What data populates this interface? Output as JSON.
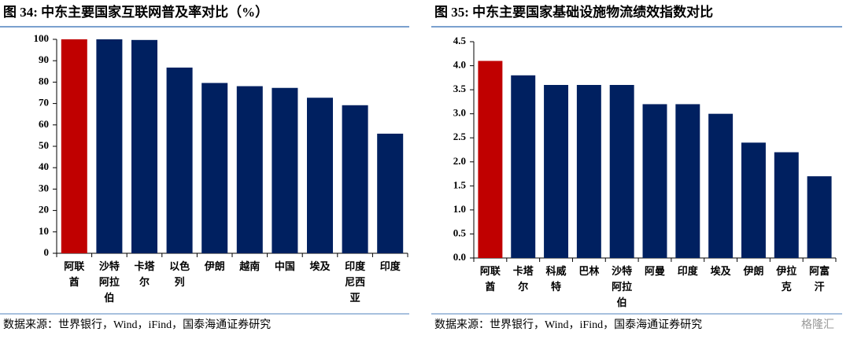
{
  "chart_data": [
    {
      "type": "bar",
      "title": "图 34:  中东主要国家互联网普及率对比（%）",
      "categories": [
        "阿联酋",
        "沙特阿拉伯",
        "卡塔尔",
        "以色列",
        "伊朗",
        "越南",
        "中国",
        "埃及",
        "印度尼西亚",
        "印度"
      ],
      "values": [
        100,
        100,
        99.7,
        86.8,
        79.6,
        78.1,
        77.3,
        72.7,
        69.2,
        55.9
      ],
      "colors": [
        "#c00000",
        "#002060",
        "#002060",
        "#002060",
        "#002060",
        "#002060",
        "#002060",
        "#002060",
        "#002060",
        "#002060"
      ],
      "ylim": [
        0,
        100
      ],
      "yticks": [
        0,
        10,
        20,
        30,
        40,
        50,
        60,
        70,
        80,
        90,
        100
      ],
      "source": "数据来源：世界银行，Wind，iFind，国泰海通证券研究"
    },
    {
      "type": "bar",
      "title": "图 35:  中东主要国家基础设施物流绩效指数对比",
      "categories": [
        "阿联酋",
        "卡塔尔",
        "科威特",
        "巴林",
        "沙特阿拉伯",
        "阿曼",
        "印度",
        "埃及",
        "伊朗",
        "伊拉克",
        "阿富汗"
      ],
      "values": [
        4.1,
        3.8,
        3.6,
        3.6,
        3.6,
        3.2,
        3.2,
        3.0,
        2.4,
        2.2,
        1.7
      ],
      "colors": [
        "#c00000",
        "#002060",
        "#002060",
        "#002060",
        "#002060",
        "#002060",
        "#002060",
        "#002060",
        "#002060",
        "#002060",
        "#002060"
      ],
      "ylim": [
        0,
        4.5
      ],
      "yticks": [
        {
          "value": 0,
          "label": "0.0"
        },
        0.5,
        {
          "value": 1,
          "label": "1.0"
        },
        1.5,
        {
          "value": 2,
          "label": "2.0"
        },
        2.5,
        {
          "value": 3,
          "label": "3.0"
        },
        3.5,
        {
          "value": 4,
          "label": "4.0"
        },
        4.5
      ],
      "source": "数据来源：世界银行，Wind，iFind，国泰海通证券研究",
      "watermark": "格隆汇"
    }
  ]
}
